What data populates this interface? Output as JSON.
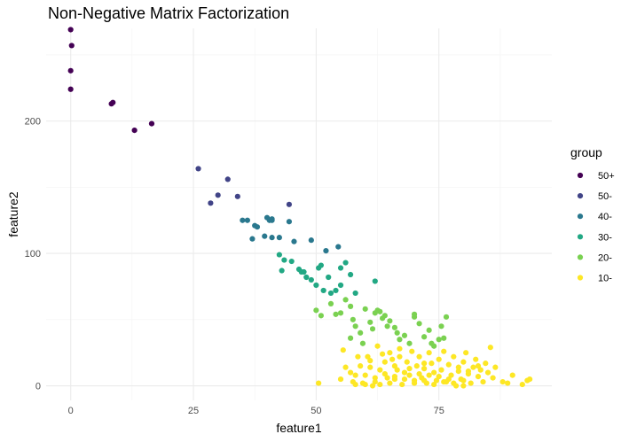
{
  "chart_data": {
    "type": "scatter",
    "title": "Non-Negative Matrix Factorization",
    "xlabel": "feature1",
    "ylabel": "feature2",
    "xlim": [
      -5,
      98
    ],
    "ylim": [
      -11,
      270
    ],
    "x_ticks": [
      0,
      25,
      50,
      75
    ],
    "y_ticks": [
      0,
      100,
      200
    ],
    "grid": true,
    "legend": {
      "title": "group",
      "placement": "right",
      "entries": [
        {
          "label": "50+",
          "color": "#440154"
        },
        {
          "label": "50-",
          "color": "#414487"
        },
        {
          "label": "40-",
          "color": "#2a788e"
        },
        {
          "label": "30-",
          "color": "#22a884"
        },
        {
          "label": "20-",
          "color": "#7ad151"
        },
        {
          "label": "10-",
          "color": "#fde725"
        }
      ]
    },
    "series": [
      {
        "name": "50+",
        "color": "#440154",
        "points": [
          [
            0,
            269
          ],
          [
            0.2,
            257
          ],
          [
            0,
            238
          ],
          [
            0,
            224
          ],
          [
            8.3,
            213
          ],
          [
            8.6,
            214
          ],
          [
            13,
            193
          ],
          [
            16.5,
            198
          ]
        ]
      },
      {
        "name": "50-",
        "color": "#414487",
        "points": [
          [
            26,
            164
          ],
          [
            32,
            156
          ],
          [
            30,
            144
          ],
          [
            28.5,
            138
          ],
          [
            34,
            143
          ],
          [
            44.5,
            137
          ]
        ]
      },
      {
        "name": "40-",
        "color": "#2a788e",
        "points": [
          [
            35,
            125
          ],
          [
            36,
            125
          ],
          [
            37.5,
            121
          ],
          [
            38,
            120
          ],
          [
            40,
            127
          ],
          [
            40.5,
            125
          ],
          [
            41,
            126
          ],
          [
            41,
            125
          ],
          [
            39.5,
            113
          ],
          [
            41,
            112
          ],
          [
            37,
            111
          ],
          [
            42.5,
            112
          ],
          [
            44.5,
            124
          ],
          [
            45.5,
            109
          ],
          [
            49,
            110
          ],
          [
            52,
            102
          ],
          [
            54.5,
            105
          ]
        ]
      },
      {
        "name": "30-",
        "color": "#22a884",
        "points": [
          [
            42.5,
            99
          ],
          [
            43.5,
            95
          ],
          [
            45,
            94
          ],
          [
            43,
            87
          ],
          [
            46.5,
            88
          ],
          [
            47,
            86
          ],
          [
            47.5,
            86
          ],
          [
            48,
            82
          ],
          [
            49,
            80
          ],
          [
            50,
            76
          ],
          [
            50.5,
            89
          ],
          [
            51,
            91
          ],
          [
            51.5,
            72
          ],
          [
            52.5,
            82
          ],
          [
            53,
            70
          ],
          [
            54,
            72
          ],
          [
            55,
            76
          ],
          [
            55,
            89
          ],
          [
            56,
            93
          ],
          [
            57,
            84
          ],
          [
            58,
            70
          ],
          [
            62,
            79
          ]
        ]
      },
      {
        "name": "20-",
        "color": "#7ad151",
        "points": [
          [
            50,
            57
          ],
          [
            51,
            53
          ],
          [
            53,
            62
          ],
          [
            54,
            54
          ],
          [
            55,
            55
          ],
          [
            56,
            65
          ],
          [
            57,
            60
          ],
          [
            57.5,
            50
          ],
          [
            58,
            45
          ],
          [
            59,
            40
          ],
          [
            59.5,
            32
          ],
          [
            60,
            58
          ],
          [
            61,
            48
          ],
          [
            61.5,
            43
          ],
          [
            62,
            55
          ],
          [
            62.5,
            57
          ],
          [
            63,
            56
          ],
          [
            63.5,
            51
          ],
          [
            64,
            53
          ],
          [
            64.5,
            45
          ],
          [
            65,
            49
          ],
          [
            66,
            44
          ],
          [
            66.5,
            40
          ],
          [
            67,
            35
          ],
          [
            68,
            38
          ],
          [
            69,
            32
          ],
          [
            70,
            52
          ],
          [
            70,
            54
          ],
          [
            71,
            47
          ],
          [
            72,
            37
          ],
          [
            73,
            42
          ],
          [
            73.5,
            32
          ],
          [
            74,
            30
          ],
          [
            75,
            35
          ],
          [
            75.5,
            45
          ],
          [
            76,
            36
          ],
          [
            76.5,
            52
          ],
          [
            57,
            36
          ]
        ]
      },
      {
        "name": "10-",
        "color": "#fde725",
        "points": [
          [
            50.5,
            2
          ],
          [
            55,
            5
          ],
          [
            55.5,
            27
          ],
          [
            56,
            14
          ],
          [
            57,
            10
          ],
          [
            57.5,
            3
          ],
          [
            58,
            1
          ],
          [
            58.5,
            22
          ],
          [
            59,
            15
          ],
          [
            59.5,
            2
          ],
          [
            60,
            8
          ],
          [
            60.5,
            22
          ],
          [
            61,
            14
          ],
          [
            61.5,
            0
          ],
          [
            62,
            6
          ],
          [
            62.5,
            30
          ],
          [
            63,
            12
          ],
          [
            63.5,
            24
          ],
          [
            64,
            18
          ],
          [
            64.5,
            6
          ],
          [
            65,
            25
          ],
          [
            65.5,
            20
          ],
          [
            66,
            5
          ],
          [
            66.5,
            12
          ],
          [
            67,
            28
          ],
          [
            67.5,
            1
          ],
          [
            68,
            10
          ],
          [
            68.5,
            18
          ],
          [
            69,
            8
          ],
          [
            69.5,
            26
          ],
          [
            70,
            4
          ],
          [
            70.5,
            15
          ],
          [
            71,
            22
          ],
          [
            71.5,
            6
          ],
          [
            72,
            13
          ],
          [
            72.5,
            2
          ],
          [
            73,
            25
          ],
          [
            73.5,
            17
          ],
          [
            74,
            10
          ],
          [
            74.5,
            4
          ],
          [
            75,
            20
          ],
          [
            75.5,
            12
          ],
          [
            76,
            26
          ],
          [
            76.5,
            3
          ],
          [
            77,
            16
          ],
          [
            77.5,
            8
          ],
          [
            78,
            22
          ],
          [
            78.5,
            0
          ],
          [
            79,
            11
          ],
          [
            79.5,
            5
          ],
          [
            80,
            18
          ],
          [
            80.5,
            25
          ],
          [
            81,
            9
          ],
          [
            81.5,
            2
          ],
          [
            82,
            14
          ],
          [
            82.5,
            20
          ],
          [
            83,
            7
          ],
          [
            83.5,
            12
          ],
          [
            84,
            3
          ],
          [
            84.5,
            17
          ],
          [
            85,
            10
          ],
          [
            85.5,
            29
          ],
          [
            86,
            6
          ],
          [
            86.5,
            14
          ],
          [
            88,
            3
          ],
          [
            89,
            2
          ],
          [
            90,
            8
          ],
          [
            92,
            1
          ],
          [
            93,
            4
          ],
          [
            93.5,
            5
          ],
          [
            60,
            1
          ],
          [
            62,
            3
          ],
          [
            65,
            2
          ],
          [
            68,
            5
          ],
          [
            70,
            2
          ],
          [
            72,
            4
          ],
          [
            74,
            1
          ],
          [
            76,
            3
          ],
          [
            78,
            2
          ],
          [
            80,
            4
          ],
          [
            66,
            15
          ],
          [
            71,
            9
          ],
          [
            64,
            9
          ],
          [
            69,
            13
          ],
          [
            73,
            8
          ],
          [
            77,
            5
          ],
          [
            79,
            14
          ],
          [
            81,
            11
          ],
          [
            58,
            8
          ],
          [
            61,
            19
          ],
          [
            67,
            22
          ],
          [
            75,
            7
          ],
          [
            63,
            1
          ],
          [
            66,
            7
          ],
          [
            72,
            17
          ],
          [
            80,
            0
          ],
          [
            83,
            15
          ]
        ]
      }
    ]
  }
}
